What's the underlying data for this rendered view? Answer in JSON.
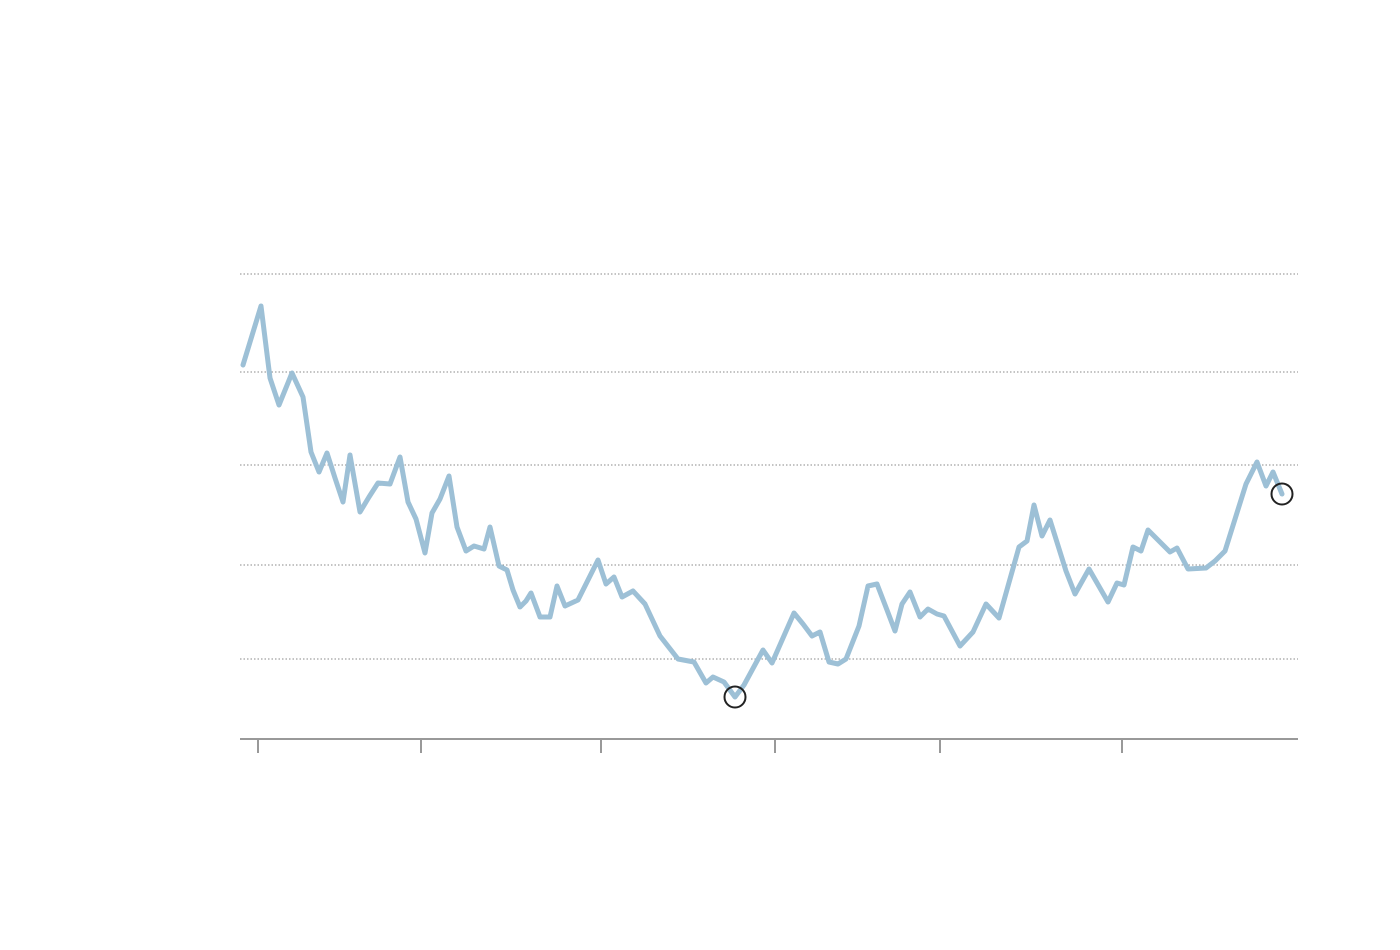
{
  "chart_data": {
    "type": "line",
    "series": [
      {
        "color": "#9dc0d6",
        "x": [
          0.3,
          2.1,
          3,
          3.9,
          5.2,
          6.3,
          7.1,
          7.9,
          8.7,
          9.5,
          10.3,
          11,
          12,
          12.9,
          13.8,
          15,
          16,
          16.8,
          17.6,
          18.5,
          19.2,
          20,
          20.9,
          21.7,
          22.6,
          23.4,
          24.4,
          25,
          25.9,
          26.7,
          27.3,
          28,
          28.6,
          29.1,
          30,
          31,
          31.7,
          32.5,
          33.8,
          34.8,
          35.8,
          36.6,
          37.4,
          38.2,
          39.3,
          40.5,
          42,
          43.8,
          45.4,
          46.6,
          47.3,
          48.4,
          49.5,
          50.4,
          52.3,
          53.2,
          55.4,
          56.3,
          57.2,
          58,
          58.9,
          59.8,
          60.6,
          61.9,
          62.8,
          63.7,
          64.7,
          65.5,
          66.2,
          67,
          68,
          68.8,
          69.7,
          70.4,
          72,
          73.3,
          74.6,
          75.9,
          77.9,
          78.7,
          79.4,
          80.2,
          81,
          82.6,
          83.5,
          84.9,
          86.8,
          87.7,
          88.4,
          89.3,
          90.1,
          90.8,
          93,
          93.7,
          94.8,
          96.6,
          97.5,
          98.5,
          100.6,
          101.7,
          102.6,
          103.3,
          104.2
        ],
        "values": [
          37.4,
          43.3,
          36.1,
          33.4,
          36.6,
          34.2,
          28.7,
          26.7,
          28.6,
          26.1,
          23.7,
          28.4,
          22.7,
          24.2,
          25.6,
          25.5,
          28.2,
          23.7,
          22,
          18.6,
          22.6,
          24,
          26.3,
          21.2,
          18.8,
          19.3,
          19,
          21.2,
          17.3,
          16.9,
          14.9,
          13.2,
          13.8,
          14.6,
          12.2,
          12.2,
          15.3,
          13.3,
          13.9,
          15.9,
          17.9,
          15.5,
          16.2,
          14.2,
          14.8,
          13.5,
          10.3,
          8,
          7.7,
          5.6,
          6.2,
          5.7,
          4.2,
          5.4,
          8.9,
          7.6,
          12.6,
          11.5,
          10.3,
          10.7,
          7.7,
          7.5,
          8,
          11.3,
          15.3,
          15.5,
          12.9,
          10.8,
          13.5,
          14.7,
          12.2,
          13,
          12.5,
          12.3,
          9.3,
          10.7,
          13.5,
          12.1,
          19.2,
          19.8,
          23.4,
          20.3,
          21.9,
          16.8,
          14.5,
          17,
          13.7,
          15.6,
          15.4,
          19.2,
          18.8,
          20.9,
          18.7,
          19.1,
          17,
          17.1,
          17.8,
          18.8,
          25.5,
          27.7,
          25.3,
          26.7,
          24.5
        ],
        "highlights": [
          52,
          102
        ]
      }
    ],
    "xlim": [
      0,
      105.8
    ],
    "xticks": [
      1.8,
      18.1,
      36.1,
      53.5,
      70,
      88.2
    ],
    "ylim": [
      0,
      53.9
    ],
    "yticks": [
      8,
      17.4,
      27.4,
      36.7,
      46.5
    ],
    "grid": true
  }
}
